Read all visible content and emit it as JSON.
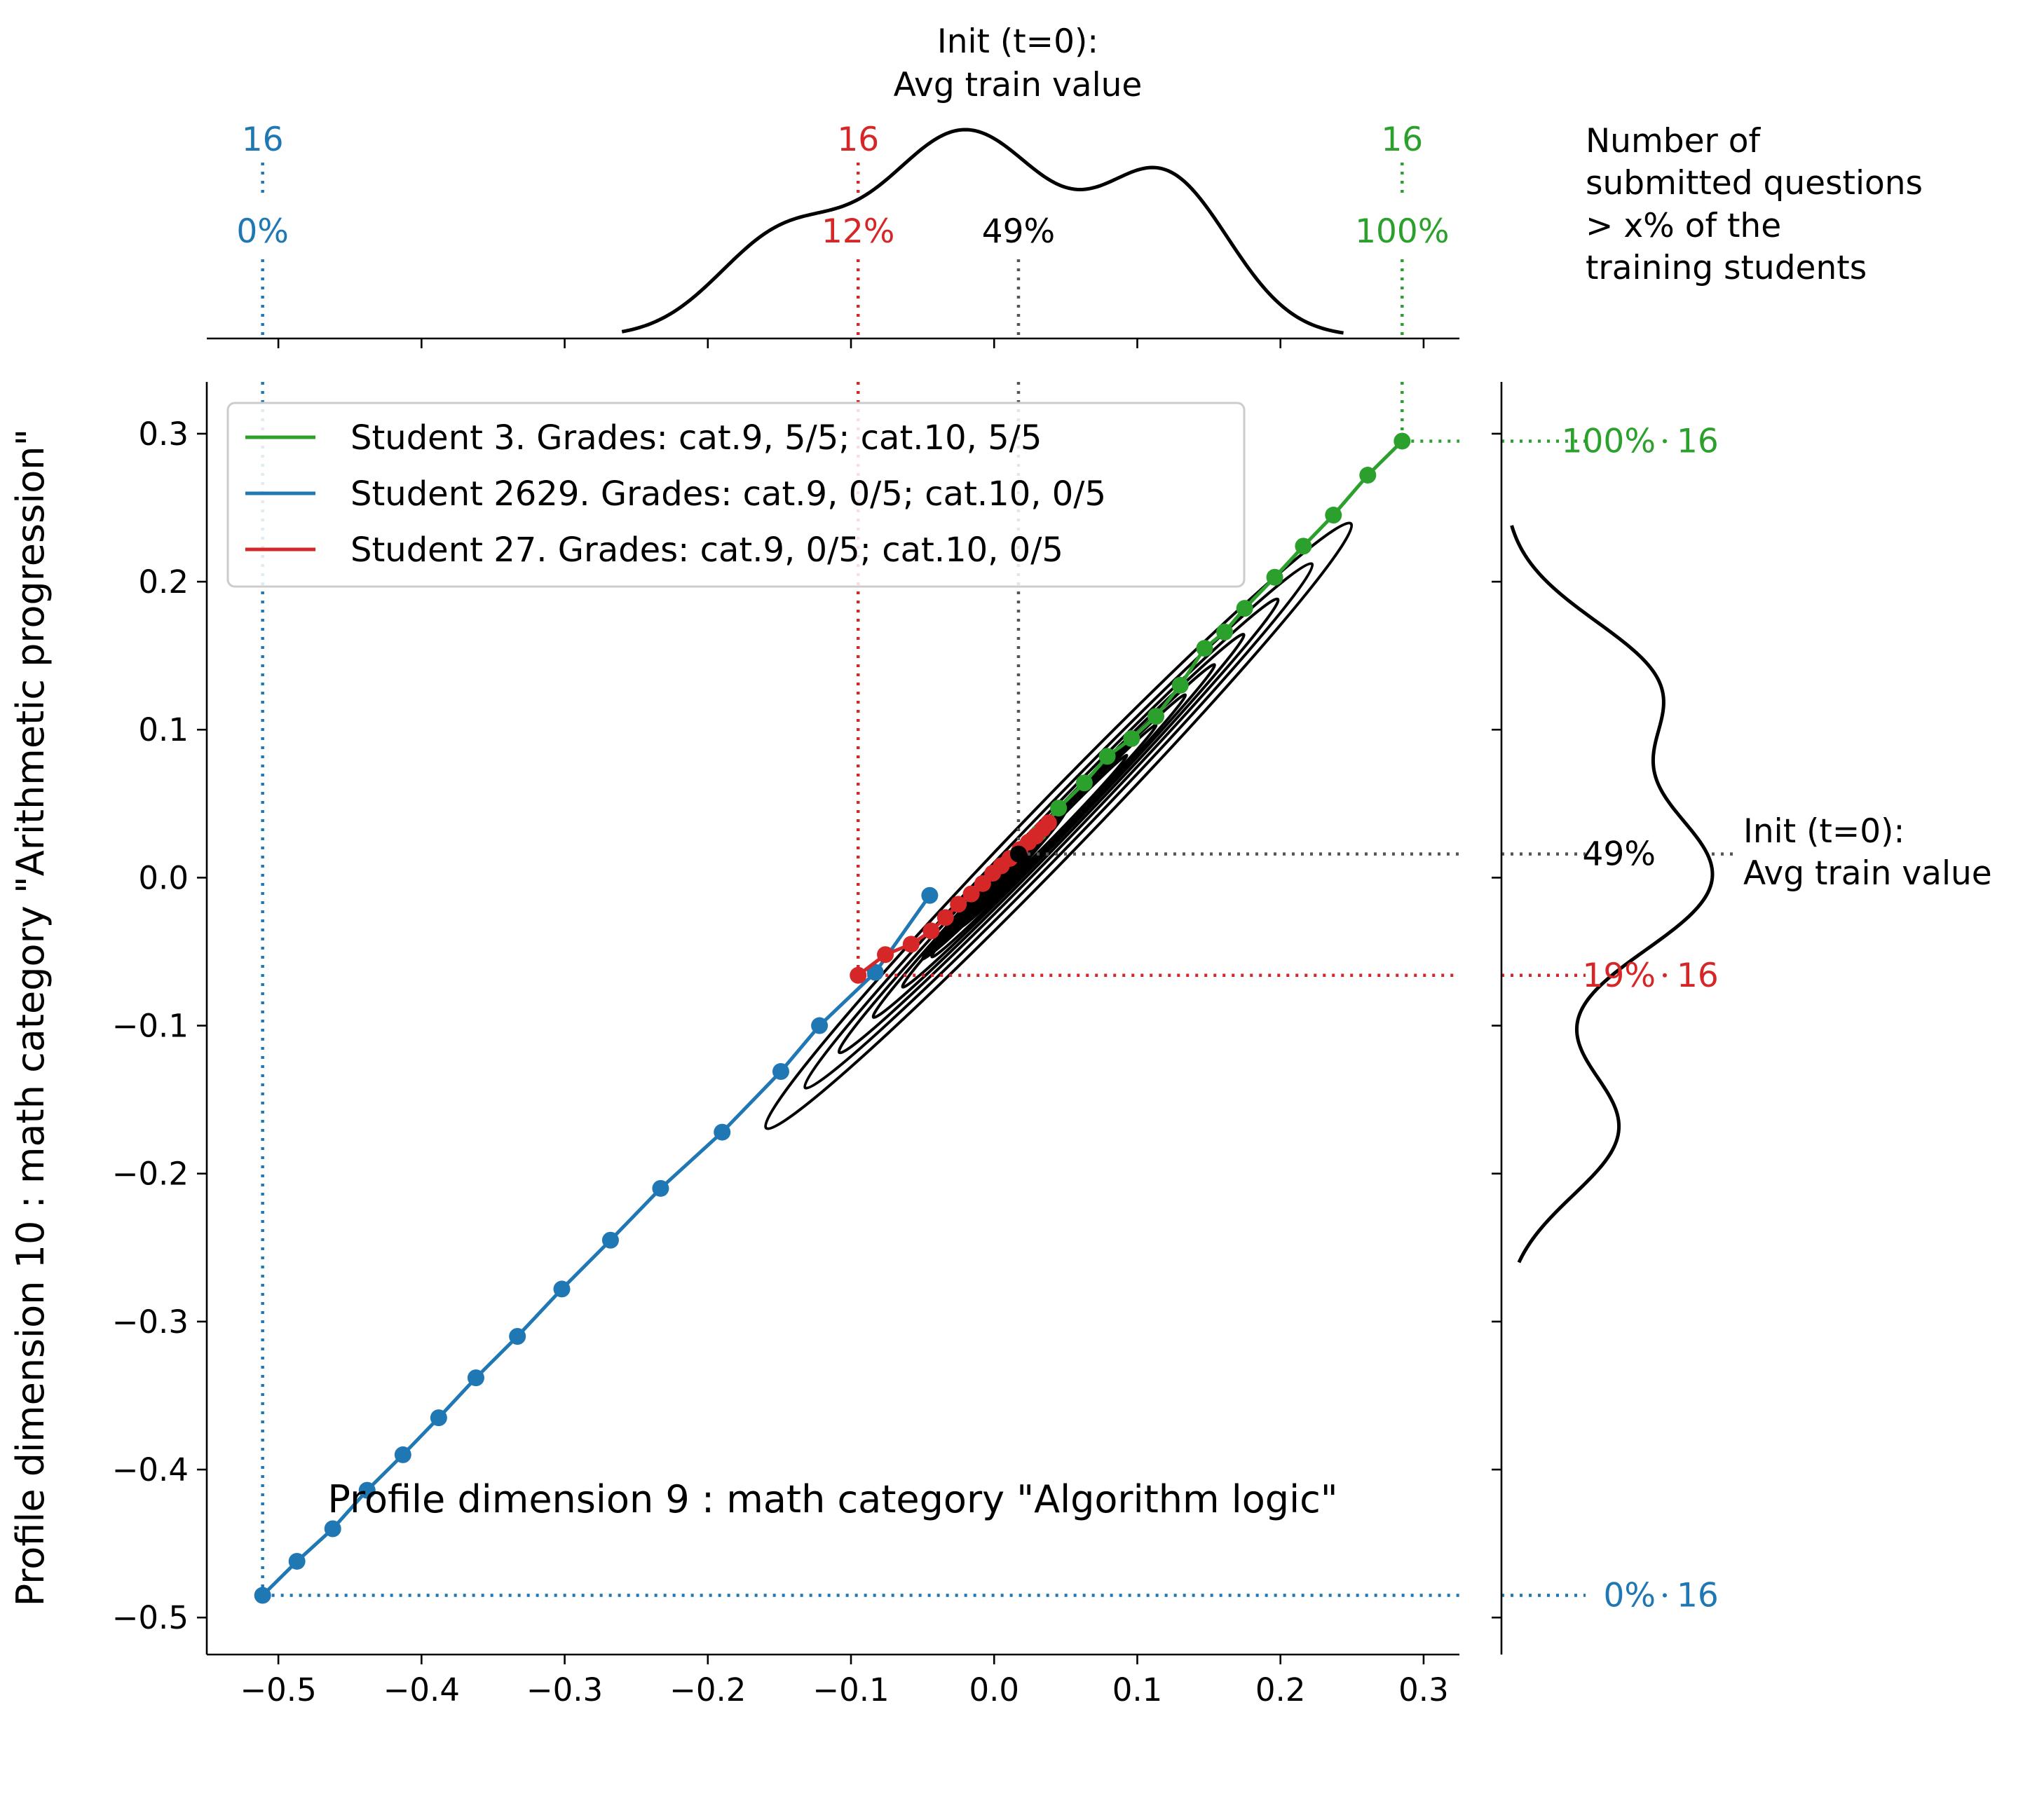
{
  "chart_data": {
    "type": "scatter",
    "xlabel": "Profile dimension 9 : math category \"Algorithm logic\"",
    "ylabel": "Profile dimension 10 : math category \"Arithmetic progression\"",
    "xlim": [
      -0.55,
      0.325
    ],
    "ylim": [
      -0.525,
      0.335
    ],
    "xticks": [
      -0.5,
      -0.4,
      -0.3,
      -0.2,
      -0.1,
      0.0,
      0.1,
      0.2,
      0.3
    ],
    "xtick_labels": [
      "−0.5",
      "−0.4",
      "−0.3",
      "−0.2",
      "−0.1",
      "0.0",
      "0.1",
      "0.2",
      "0.3"
    ],
    "yticks": [
      0.3,
      0.2,
      0.1,
      0.0,
      -0.1,
      -0.2,
      -0.3,
      -0.4,
      -0.5
    ],
    "ytick_labels": [
      "0.3",
      "0.2",
      "0.1",
      "0.0",
      "−0.1",
      "−0.2",
      "−0.3",
      "−0.4",
      "−0.5"
    ],
    "grid": false,
    "legend_position": "top-left",
    "series": [
      {
        "name": "Student 3. Grades: cat.9, 5/5; cat.10, 5/5",
        "color": "#2ca02c",
        "x": [
          0.017,
          0.031,
          0.045,
          0.063,
          0.079,
          0.096,
          0.113,
          0.13,
          0.147,
          0.161,
          0.175,
          0.196,
          0.216,
          0.237,
          0.261,
          0.285
        ],
        "y": [
          0.017,
          0.03,
          0.047,
          0.064,
          0.082,
          0.094,
          0.109,
          0.13,
          0.155,
          0.166,
          0.182,
          0.203,
          0.224,
          0.245,
          0.272,
          0.295
        ]
      },
      {
        "name": "Student 2629. Grades: cat.9, 0/5; cat.10, 0/5",
        "color": "#1f77b4",
        "x": [
          -0.045,
          -0.083,
          -0.122,
          -0.149,
          -0.19,
          -0.233,
          -0.268,
          -0.302,
          -0.333,
          -0.362,
          -0.388,
          -0.413,
          -0.438,
          -0.462,
          -0.487,
          -0.511
        ],
        "y": [
          -0.012,
          -0.064,
          -0.1,
          -0.131,
          -0.172,
          -0.21,
          -0.245,
          -0.278,
          -0.31,
          -0.338,
          -0.365,
          -0.39,
          -0.414,
          -0.44,
          -0.462,
          -0.485
        ]
      },
      {
        "name": "Student 27. Grades: cat.9, 0/5; cat.10, 0/5",
        "color": "#d62728",
        "x": [
          0.038,
          0.034,
          0.029,
          0.024,
          0.018,
          0.011,
          0.005,
          -0.001,
          -0.008,
          -0.016,
          -0.025,
          -0.034,
          -0.044,
          -0.058,
          -0.076,
          -0.095
        ],
        "y": [
          0.037,
          0.033,
          0.028,
          0.024,
          0.019,
          0.013,
          0.008,
          0.003,
          -0.004,
          -0.011,
          -0.018,
          -0.027,
          -0.036,
          -0.045,
          -0.052,
          -0.066
        ]
      }
    ],
    "init_point": {
      "x": 0.017,
      "y": 0.016
    },
    "top_annotations": [
      {
        "count": "16",
        "pct": "0%",
        "color": "#1f77b4",
        "x": -0.511
      },
      {
        "count": "16",
        "pct": "12%",
        "color": "#d62728",
        "x": -0.095
      },
      {
        "pct": "49%",
        "color": "#000000",
        "x": 0.017
      },
      {
        "count": "16",
        "pct": "100%",
        "color": "#2ca02c",
        "x": 0.285
      }
    ],
    "right_annotations": [
      {
        "count": "16",
        "pct": "100%",
        "color": "#2ca02c",
        "y": 0.295
      },
      {
        "pct": "49%",
        "color": "#000000",
        "y": 0.016
      },
      {
        "count": "16",
        "pct": "19%",
        "color": "#d62728",
        "y": -0.066
      },
      {
        "count": "16",
        "pct": "0%",
        "color": "#1f77b4",
        "y": -0.485
      }
    ],
    "init_label_top": [
      "Init (t=0):",
      "Avg train value"
    ],
    "init_label_right": [
      "Init (t=0):",
      "Avg train value"
    ],
    "note_lines": [
      "Number of",
      "submitted questions",
      "> x% of the",
      "training students"
    ]
  }
}
